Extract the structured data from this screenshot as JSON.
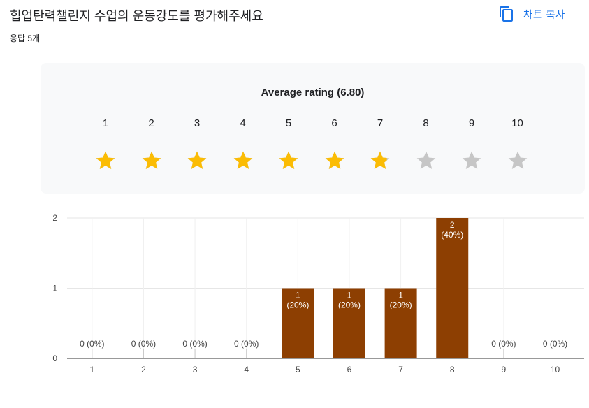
{
  "header": {
    "title": "힙업탄력챌린지 수업의 운동강도를 평가해주세요",
    "response_count": "응답 5개",
    "copy_chart_label": "차트 복사"
  },
  "rating_summary": {
    "average_label": "Average rating (6.80)",
    "average": 6.8,
    "scale": [
      "1",
      "2",
      "3",
      "4",
      "5",
      "6",
      "7",
      "8",
      "9",
      "10"
    ],
    "colors": {
      "filled": "#fbbc04",
      "empty": "#c6c6c6"
    }
  },
  "colors": {
    "accent": "#1a73e8",
    "bar": "#8d3f02",
    "card": "#f8f9fa"
  },
  "chart_data": {
    "type": "bar",
    "categories": [
      "1",
      "2",
      "3",
      "4",
      "5",
      "6",
      "7",
      "8",
      "9",
      "10"
    ],
    "values": [
      0,
      0,
      0,
      0,
      1,
      1,
      1,
      2,
      0,
      0
    ],
    "value_labels": [
      "0 (0%)",
      "0 (0%)",
      "0 (0%)",
      "0 (0%)",
      "1",
      "1",
      "1",
      "2",
      "0 (0%)",
      "0 (0%)"
    ],
    "percent_labels": [
      "",
      "",
      "",
      "",
      "(20%)",
      "(20%)",
      "(20%)",
      "(40%)",
      "",
      ""
    ],
    "yticks": [
      "0",
      "1",
      "2"
    ],
    "ylim": [
      0,
      2
    ],
    "xlabel": "",
    "ylabel": "",
    "grid": true
  }
}
